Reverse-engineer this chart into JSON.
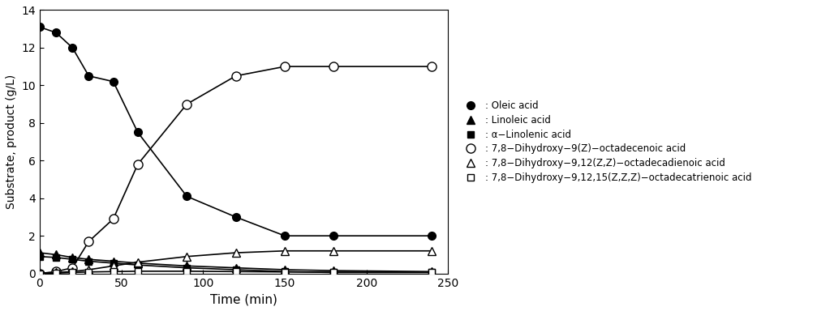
{
  "oleic_acid": {
    "x": [
      0,
      10,
      20,
      30,
      45,
      60,
      90,
      120,
      150,
      180,
      240
    ],
    "y": [
      13.1,
      12.8,
      12.0,
      10.5,
      10.2,
      7.5,
      4.1,
      3.0,
      2.0,
      2.0,
      2.0
    ]
  },
  "linoleic_acid": {
    "x": [
      0,
      10,
      20,
      30,
      45,
      60,
      90,
      120,
      150,
      180,
      240
    ],
    "y": [
      1.1,
      1.0,
      0.85,
      0.75,
      0.65,
      0.55,
      0.4,
      0.3,
      0.2,
      0.15,
      0.1
    ]
  },
  "alpha_linolenic_acid": {
    "x": [
      0,
      10,
      20,
      30,
      45,
      60,
      90,
      120,
      150,
      180,
      240
    ],
    "y": [
      0.9,
      0.85,
      0.75,
      0.65,
      0.55,
      0.45,
      0.3,
      0.2,
      0.1,
      0.05,
      0.05
    ]
  },
  "diol_oleic": {
    "x": [
      0,
      10,
      20,
      30,
      45,
      60,
      90,
      120,
      150,
      180,
      240
    ],
    "y": [
      0.0,
      0.1,
      0.3,
      1.7,
      2.9,
      5.8,
      9.0,
      10.5,
      11.0,
      11.0,
      11.0
    ]
  },
  "diol_linoleic": {
    "x": [
      0,
      10,
      20,
      30,
      45,
      60,
      90,
      120,
      150,
      180,
      240
    ],
    "y": [
      0.0,
      0.05,
      0.1,
      0.2,
      0.4,
      0.6,
      0.9,
      1.1,
      1.2,
      1.2,
      1.2
    ]
  },
  "diol_linolenic": {
    "x": [
      0,
      10,
      20,
      30,
      45,
      60,
      90,
      120,
      150,
      180,
      240
    ],
    "y": [
      0.0,
      0.02,
      0.05,
      0.08,
      0.1,
      0.12,
      0.12,
      0.1,
      0.08,
      0.07,
      0.07
    ]
  },
  "xlim": [
    0,
    250
  ],
  "ylim": [
    0,
    14
  ],
  "yticks": [
    0,
    2,
    4,
    6,
    8,
    10,
    12,
    14
  ],
  "xticks": [
    0,
    50,
    100,
    150,
    200,
    250
  ],
  "xlabel": "Time (min)",
  "ylabel": "Substrate, product (g/L)",
  "line_color": "#000000",
  "bg_color": "#ffffff"
}
